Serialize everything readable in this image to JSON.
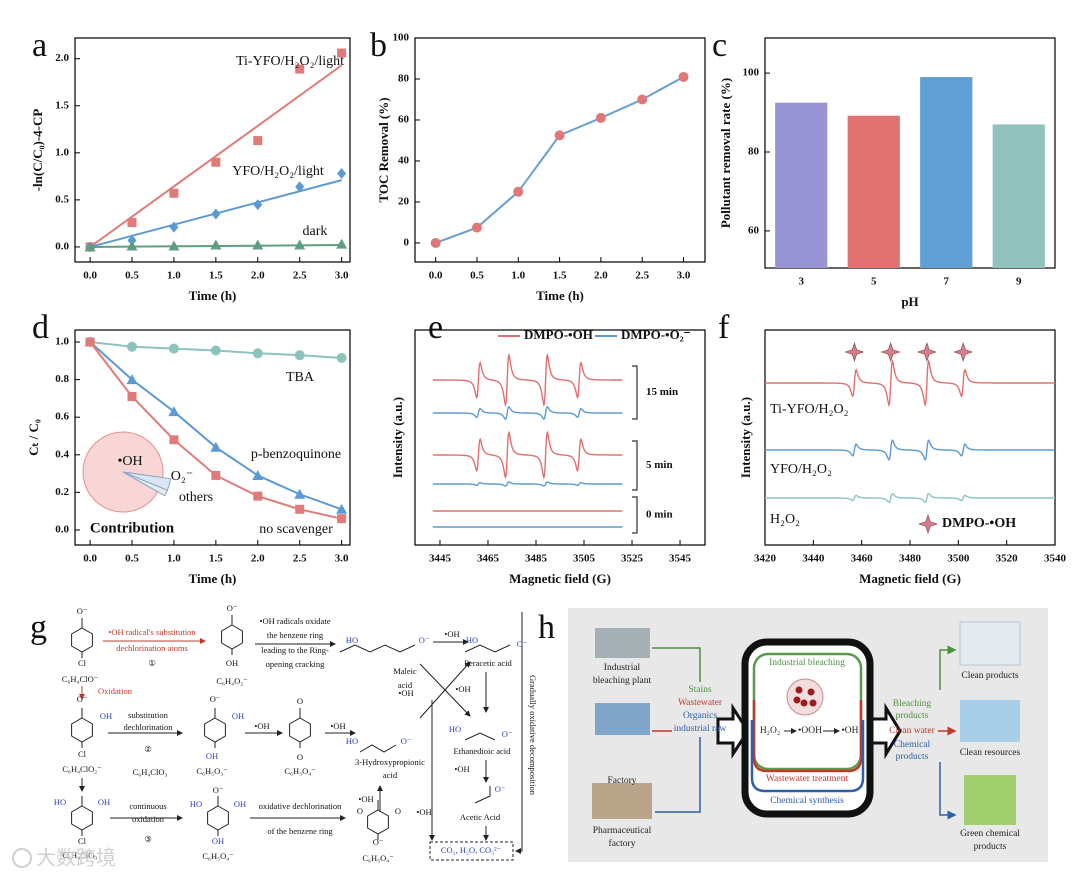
{
  "panel_labels": [
    "a",
    "b",
    "c",
    "d",
    "e",
    "f",
    "g",
    "h"
  ],
  "chart_data": [
    {
      "type": "scatter",
      "xlabel": "Time (h)",
      "ylabel": "-ln(C/C₀)-4-CP",
      "xlim": [
        -0.18,
        3.1
      ],
      "ylim": [
        -0.16,
        2.22
      ],
      "xticks": [
        {
          "value": 0,
          "label": "0.0"
        },
        {
          "value": 0.5,
          "label": "0.5"
        },
        {
          "value": 1,
          "label": "1.0"
        },
        {
          "value": 1.5,
          "label": "1.5"
        },
        {
          "value": 2,
          "label": "2.0"
        },
        {
          "value": 2.5,
          "label": "2.5"
        },
        {
          "value": 3,
          "label": "3.0"
        }
      ],
      "yticks": [
        {
          "value": 0,
          "label": "0.0"
        },
        {
          "value": 0.5,
          "label": "0.5"
        },
        {
          "value": 1,
          "label": "1.0"
        },
        {
          "value": 1.5,
          "label": "1.5"
        },
        {
          "value": 2,
          "label": "2.0"
        }
      ],
      "x": [
        0,
        0.5,
        1,
        1.5,
        2,
        2.5,
        3
      ],
      "fit_x": [
        0,
        3
      ],
      "series": [
        {
          "name": "Ti-YFO/H₂O₂/light",
          "color": "#e07b79",
          "marker": "square",
          "values": [
            0,
            0.26,
            0.57,
            0.9,
            1.13,
            1.89,
            2.06
          ],
          "fit": [
            0,
            1.93
          ]
        },
        {
          "name": "YFO/H₂O₂/light",
          "color": "#5d9ad3",
          "marker": "diamond",
          "values": [
            0,
            0.07,
            0.21,
            0.35,
            0.45,
            0.64,
            0.78
          ],
          "fit": [
            0,
            0.71
          ]
        },
        {
          "name": "dark",
          "color": "#5f9e80",
          "marker": "triangle",
          "values": [
            0,
            0.01,
            0.01,
            0.02,
            0.02,
            0.02,
            0.03
          ],
          "fit": [
            0,
            0.02
          ]
        }
      ]
    },
    {
      "type": "line",
      "xlabel": "Time (h)",
      "ylabel": "TOC Removal (%)",
      "xlim": [
        -0.25,
        3.26
      ],
      "ylim": [
        -9.3,
        100
      ],
      "xticks": [
        {
          "value": 0,
          "label": "0.0"
        },
        {
          "value": 0.5,
          "label": "0.5"
        },
        {
          "value": 1,
          "label": "1.0"
        },
        {
          "value": 1.5,
          "label": "1.5"
        },
        {
          "value": 2,
          "label": "2.0"
        },
        {
          "value": 2.5,
          "label": "2.5"
        },
        {
          "value": 3,
          "label": "3.0"
        }
      ],
      "yticks": [
        0,
        20,
        40,
        60,
        80,
        100
      ],
      "x": [
        0,
        0.5,
        1,
        1.5,
        2,
        2.5,
        3
      ],
      "series": [
        {
          "color": "#6a9fcf",
          "marker_color": "#e07878",
          "marker": "circle",
          "values": [
            0,
            7.5,
            25,
            52.5,
            61,
            70,
            81
          ]
        }
      ]
    },
    {
      "type": "bar",
      "xlabel": "pH",
      "ylabel": "Pollutant removal rate (%)",
      "ylim": [
        50.6,
        108.9
      ],
      "yticks": [
        60,
        80,
        100
      ],
      "categories": [
        "3",
        "5",
        "7",
        "9"
      ],
      "values": [
        92.5,
        89.2,
        99,
        87
      ],
      "colors": [
        "#9894d3",
        "#e07272",
        "#5f9fd4",
        "#92c2be"
      ]
    },
    {
      "type": "line",
      "xlabel": "Time (h)",
      "ylabel": "Cₜ / C₀",
      "xlim": [
        -0.18,
        3.1
      ],
      "ylim": [
        -0.08,
        1.064
      ],
      "xticks": [
        {
          "value": 0,
          "label": "0.0"
        },
        {
          "value": 0.5,
          "label": "0.5"
        },
        {
          "value": 1,
          "label": "1.0"
        },
        {
          "value": 1.5,
          "label": "1.5"
        },
        {
          "value": 2,
          "label": "2.0"
        },
        {
          "value": 2.5,
          "label": "2.5"
        },
        {
          "value": 3,
          "label": "3.0"
        }
      ],
      "yticks": [
        {
          "value": 0,
          "label": "0.0"
        },
        {
          "value": 0.2,
          "label": "0.2"
        },
        {
          "value": 0.4,
          "label": "0.4"
        },
        {
          "value": 0.6,
          "label": "0.6"
        },
        {
          "value": 0.8,
          "label": "0.8"
        },
        {
          "value": 1,
          "label": "1.0"
        }
      ],
      "x": [
        0,
        0.5,
        1,
        1.5,
        2,
        2.5,
        3
      ],
      "series": [
        {
          "name": "TBA",
          "color": "#8cc4bd",
          "marker": "circle",
          "values": [
            1,
            0.975,
            0.965,
            0.955,
            0.94,
            0.93,
            0.915
          ]
        },
        {
          "name": "p-benzoquinone",
          "color": "#5d9ad3",
          "marker": "triangle",
          "values": [
            1,
            0.8,
            0.63,
            0.44,
            0.29,
            0.19,
            0.11
          ]
        },
        {
          "name": "no scavenger",
          "color": "#e07b79",
          "marker": "square",
          "values": [
            1,
            0.71,
            0.48,
            0.29,
            0.18,
            0.11,
            0.06
          ]
        }
      ],
      "inset": {
        "type": "pie",
        "title": "Contribution",
        "categories": [
          "•OH",
          "O₂⁻",
          "others"
        ],
        "values": [
          94,
          4,
          2
        ],
        "colors": [
          "#f8d6d6",
          "#dbe6f3",
          "#e4ecee"
        ]
      }
    },
    {
      "type": "spectrum",
      "xlabel": "Magnetic field (G)",
      "ylabel": "Intensity (a.u.)",
      "xlim": [
        3434.6,
        3555.4
      ],
      "xticks": [
        3445,
        3465,
        3485,
        3505,
        3525,
        3545
      ],
      "trace_range": [
        3442,
        3521
      ],
      "peaks_x": [
        3461,
        3473,
        3489,
        3503
      ],
      "peak_heights": [
        0.7,
        1,
        1,
        0.7
      ],
      "categories": [
        "15 min",
        "5 min",
        "0 min"
      ],
      "series": [
        {
          "name": "DMPO-•OH",
          "color": "#e07070",
          "values": [
            1,
            0.9,
            0
          ]
        },
        {
          "name": "DMPO-•O₂⁻",
          "color": "#5d9ad3",
          "values": [
            0.25,
            0.08,
            0
          ]
        }
      ]
    },
    {
      "type": "spectrum",
      "xlabel": "Magnetic field (G)",
      "ylabel": "Intensity (a.u.)",
      "xlim": [
        3420,
        3540
      ],
      "xticks": [
        3420,
        3440,
        3460,
        3480,
        3500,
        3520,
        3540
      ],
      "trace_range": [
        3420,
        3540
      ],
      "peaks_x": [
        3457,
        3472,
        3487,
        3502
      ],
      "peak_heights": [
        0.6,
        1,
        1,
        0.6
      ],
      "legend": "DMPO-•OH",
      "legend_color": "#d47f8a",
      "series": [
        {
          "name": "Ti-YFO/H₂O₂",
          "color": "#e07070",
          "amplitude": 1
        },
        {
          "name": "YFO/H₂O₂",
          "color": "#5d9ad3",
          "amplitude": 0.45
        },
        {
          "name": "H₂O₂",
          "color": "#8cc4bd",
          "amplitude": 0.2
        }
      ]
    }
  ],
  "scheme": {
    "texts": [
      "O⁻",
      "Cl",
      "C₆H₄ClO⁻",
      "•OH radical's substitution",
      "dechlorination atoms",
      "①",
      "Oxidation",
      "O⁻",
      "OH",
      "C₆H₄O₂⁻",
      "•OH radicals oxidate",
      "the benzene ring",
      "leading to the Ring-",
      "opening cracking",
      "HO",
      "O⁻",
      "Maleic",
      "acid",
      "•OH",
      "HO",
      "O⁻",
      "Peracetic acid",
      "•OH",
      "•OH",
      "HO",
      "O⁻",
      "Ethanedioic acid",
      "•OH",
      "O⁻",
      "Acetic Acid",
      "•OH",
      "CO₂, H₂O, CO₃²⁻",
      "Gradually oxidative decomposition",
      "O⁻",
      "OH",
      "Cl",
      "C₆H₄ClO₂⁻",
      "substitution",
      "dechlorination",
      "②",
      "C₆H₄ClO₃",
      "O⁻",
      "OH",
      "OH",
      "C₆H₅O₃⁻",
      "•OH",
      "O",
      "O",
      "C₆H₃O₄⁻",
      "•OH",
      "HO",
      "O⁻",
      "3-Hydroxypropionic",
      "acid",
      "•OH",
      "HO",
      "OH",
      "Cl",
      "C₆H₄ClO₃⁻",
      "continuous",
      "oxidation",
      "③",
      "O⁻",
      "HO",
      "OH",
      "OH",
      "C₆H₅O₄⁻",
      "oxidative dechlorination",
      "of the benzene ring",
      "O",
      "O",
      "O⁻",
      "C₆H₅O₄⁻"
    ]
  },
  "process": {
    "texts": [
      "Industrial",
      "bleaching plant",
      "Factory",
      "Pharmaceutical",
      "factory",
      "Stains",
      "Wastewater",
      "Organics",
      "industrial raw",
      "Industrial bleaching",
      "H₂O₂",
      "•OOH",
      "•OH",
      "Wastewater treatment",
      "Chemical synthesis",
      "Bleaching",
      "products",
      "Clean water",
      "Chemical",
      "products",
      "Clean products",
      "Clean resources",
      "Green chemical",
      "products"
    ]
  },
  "watermark": "大数跨境"
}
